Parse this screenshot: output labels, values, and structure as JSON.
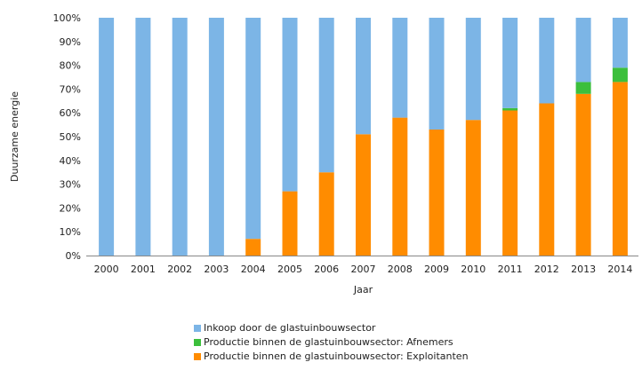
{
  "chart_data": {
    "type": "bar",
    "stacked": true,
    "categories": [
      "2000",
      "2001",
      "2002",
      "2003",
      "2004",
      "2005",
      "2006",
      "2007",
      "2008",
      "2009",
      "2010",
      "2011",
      "2012",
      "2013",
      "2014"
    ],
    "series": [
      {
        "name": "Productie binnen de glastuinbouwsector: Exploitanten",
        "color": "#ff8c00",
        "values": [
          0,
          0,
          0,
          0,
          7,
          27,
          35,
          51,
          58,
          53,
          57,
          61,
          64,
          68,
          73
        ]
      },
      {
        "name": "Productie binnen de glastuinbouwsector: Afnemers",
        "color": "#3cbf3c",
        "values": [
          0,
          0,
          0,
          0,
          0,
          0,
          0,
          0,
          0,
          0,
          0,
          1,
          0,
          5,
          6
        ]
      },
      {
        "name": "Inkoop door de glastuinbouwsector",
        "color": "#7cb5e6",
        "values": [
          100,
          100,
          100,
          100,
          93,
          73,
          65,
          49,
          42,
          47,
          43,
          38,
          36,
          27,
          21
        ]
      }
    ],
    "ylim": [
      0,
      100
    ],
    "yticks": [
      "0%",
      "10%",
      "20%",
      "30%",
      "40%",
      "50%",
      "60%",
      "70%",
      "80%",
      "90%",
      "100%"
    ],
    "ylabel": "Duurzame energie",
    "xlabel": "Jaar",
    "grid": false,
    "legend_position": "bottom"
  },
  "legend": [
    {
      "label": "Inkoop door de glastuinbouwsector",
      "color": "#7cb5e6"
    },
    {
      "label": "Productie binnen de glastuinbouwsector: Afnemers",
      "color": "#3cbf3c"
    },
    {
      "label": "Productie binnen de glastuinbouwsector: Exploitanten",
      "color": "#ff8c00"
    }
  ]
}
